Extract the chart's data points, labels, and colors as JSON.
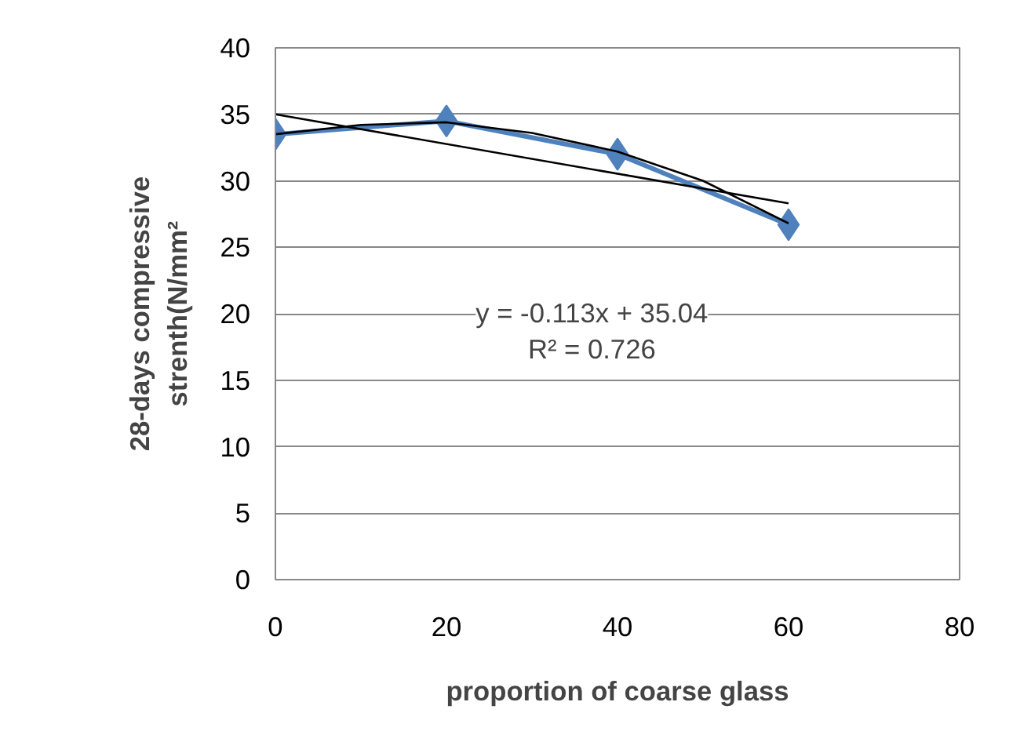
{
  "chart_data": {
    "type": "line",
    "xlabel": "proportion of coarse glass",
    "ylabel": "28-days compressive\nstrenth(N/mm²",
    "x": [
      0,
      20,
      40,
      60
    ],
    "series": [
      {
        "color": "#4f81bd",
        "values": [
          33.5,
          34.5,
          32,
          26.7
        ],
        "marker": "diamond"
      },
      {
        "color": "#000000",
        "x": [
          0,
          60
        ],
        "values": [
          35.0,
          28.3
        ],
        "marker": "none"
      },
      {
        "color": "#000000",
        "x": [
          0,
          10,
          20,
          30,
          40,
          50,
          60
        ],
        "values": [
          33.5,
          34.2,
          34.4,
          33.6,
          32.2,
          30,
          26.8
        ],
        "marker": "none"
      }
    ],
    "annotations": [
      "y = -0.113x + 35.04",
      "R² = 0.726"
    ],
    "xlim": [
      0,
      80
    ],
    "xticks": [
      0,
      20,
      40,
      60,
      80
    ],
    "ylim": [
      0,
      40
    ],
    "yticks": [
      0,
      5,
      10,
      15,
      20,
      25,
      30,
      35,
      40
    ],
    "grid": "y"
  }
}
